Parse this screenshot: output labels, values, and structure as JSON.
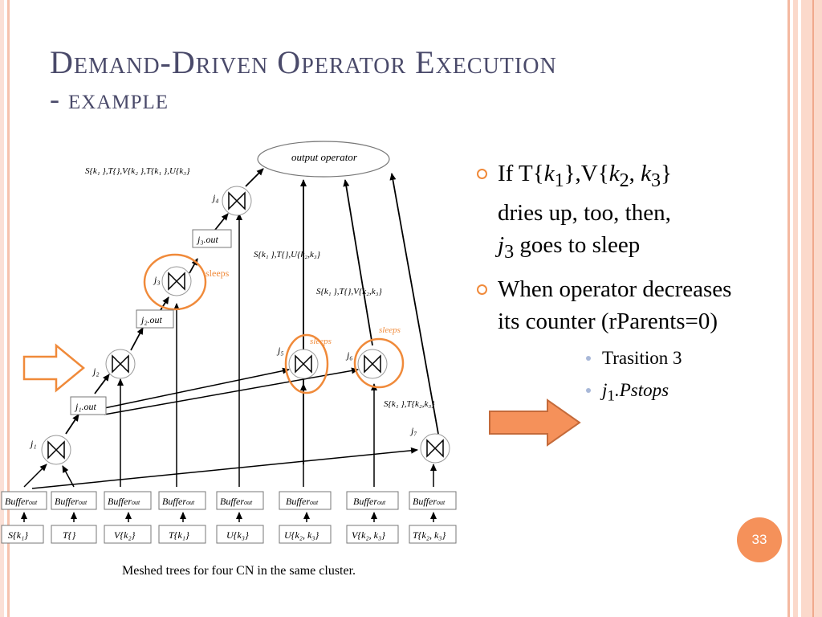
{
  "slide": {
    "title_line1": "Demand-Driven Operator Execution",
    "title_line2": "- example",
    "page_number": "33",
    "caption": "Meshed trees for four CN in the same cluster."
  },
  "bullets": [
    {
      "pre": "If T{",
      "k1": "k",
      "k1s": "1",
      "mid1": "},V{",
      "k2": "k",
      "k2s": "2",
      "comma": ", ",
      "k3": "k",
      "k3s": "3",
      "post": "}",
      "line2": "dries up, too, then,",
      "j": "j",
      "js": "3",
      "line3": " goes to sleep"
    },
    {
      "text": "When operator decreases its counter (rParents=0)"
    }
  ],
  "sub_bullets": [
    {
      "text": "Trasition 3"
    },
    {
      "j": "j",
      "js": "1",
      "text": ".Pstops"
    }
  ],
  "diagram": {
    "output_operator": "output operator",
    "buffer": "Buffer",
    "buffer_sub": "out",
    "bottom_boxes": [
      "S{k₁}",
      "T{}",
      "V{k₂}",
      "T{k₁}",
      "U{k₃}",
      "U{k₂, k₃}",
      "V{k₂, k₃}",
      "T{k₂, k₃}"
    ],
    "joins": [
      "j₁",
      "j₂",
      "j₃",
      "j₄",
      "j₅",
      "j₆",
      "j₇"
    ],
    "outs": [
      "j₁.out",
      "j₂.out",
      "j₃.out"
    ],
    "label_top": "S{k₁ },T{},V{k₂ },T{k₁ },U{k₃}",
    "label_mid1": "S{k₁ },T{},U{k₂,k₃}",
    "label_mid2": "S{k₁ },T{},V{k₂,k₃}",
    "label_right": "S{k₁ },T{k₂,k₃}",
    "sleeps": "sleeps"
  }
}
